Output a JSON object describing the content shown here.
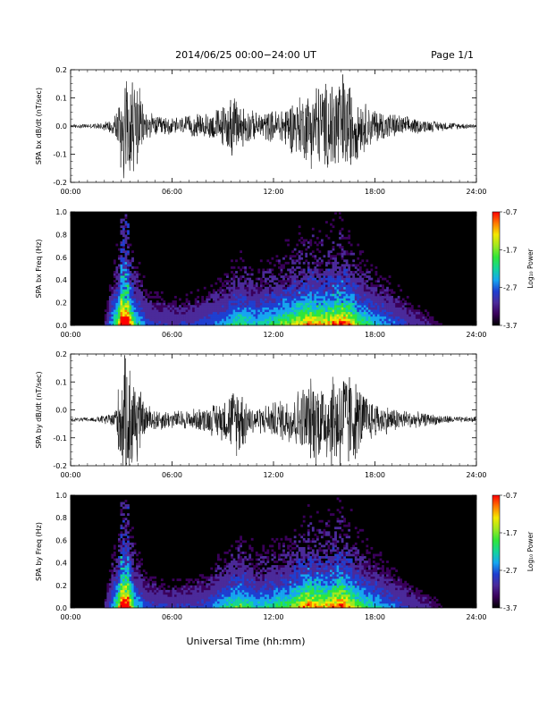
{
  "header": {
    "title": "2014/06/25  00:00−24:00 UT",
    "page": "Page 1/1"
  },
  "footer": {
    "xlabel": "Universal Time (hh:mm)"
  },
  "time_ticks": [
    "00:00",
    "06:00",
    "12:00",
    "18:00",
    "24:00"
  ],
  "colors": {
    "trace": "#000000",
    "spectrogram_background": "#000000",
    "colormap": [
      "#000000",
      "#3a005a",
      "#4b2a9a",
      "#1f3fd1",
      "#16a6f0",
      "#14d49a",
      "#30e63a",
      "#9fe820",
      "#f4e800",
      "#ff7a00",
      "#ff0000"
    ]
  },
  "chart_data": [
    {
      "type": "line",
      "name": "bx-dbdt",
      "ylabel": "SPA bx dB/dt (nT/sec)",
      "xlim": [
        0,
        24
      ],
      "ylim": [
        -0.2,
        0.2
      ],
      "yticks": [
        "-0.2",
        "-0.1",
        "0.0",
        "0.1",
        "0.2"
      ],
      "x_unit": "hours UT",
      "envelope": {
        "description": "approximate absolute amplitude of oscillations vs time",
        "x": [
          0,
          1.5,
          2.5,
          2.9,
          3.0,
          3.5,
          3.9,
          4.3,
          5.0,
          6.0,
          7.0,
          8.0,
          9.0,
          9.5,
          10.0,
          10.5,
          11.0,
          11.5,
          12.0,
          13.0,
          14.0,
          14.5,
          15.0,
          15.5,
          16.0,
          16.5,
          17.0,
          17.5,
          18.0,
          19.0,
          20.0,
          21.0,
          22.0,
          23.0,
          24.0
        ],
        "amp": [
          0.008,
          0.01,
          0.03,
          0.12,
          0.22,
          0.22,
          0.2,
          0.07,
          0.04,
          0.035,
          0.04,
          0.05,
          0.08,
          0.12,
          0.1,
          0.07,
          0.05,
          0.06,
          0.06,
          0.1,
          0.14,
          0.18,
          0.16,
          0.22,
          0.22,
          0.18,
          0.12,
          0.09,
          0.07,
          0.05,
          0.035,
          0.025,
          0.018,
          0.012,
          0.01
        ]
      },
      "baseline": 0.0
    },
    {
      "type": "heatmap",
      "name": "bx-spectrogram",
      "ylabel": "SPA bx Freq (Hz)",
      "xlim": [
        0,
        24
      ],
      "ylim": [
        0,
        1.0
      ],
      "yticks": [
        "0.0",
        "0.2",
        "0.4",
        "0.6",
        "0.8",
        "1.0"
      ],
      "colorbar": {
        "label": "Log₁₀ Power",
        "ticks": [
          "-0.7",
          "-1.7",
          "-2.7",
          "-3.7"
        ],
        "range": [
          -3.7,
          -0.7
        ]
      },
      "activity": {
        "x": [
          0,
          2.0,
          2.8,
          3.0,
          3.4,
          3.8,
          4.5,
          6.0,
          8.0,
          9.0,
          10.0,
          11.0,
          12.0,
          13.0,
          14.0,
          15.0,
          16.0,
          16.5,
          17.0,
          18.0,
          20.0,
          22.0,
          24.0
        ],
        "level": [
          0.05,
          0.1,
          0.6,
          1.0,
          0.95,
          0.5,
          0.25,
          0.2,
          0.25,
          0.35,
          0.5,
          0.4,
          0.5,
          0.6,
          0.75,
          0.7,
          0.85,
          0.75,
          0.55,
          0.4,
          0.2,
          0.1,
          0.05
        ]
      }
    },
    {
      "type": "line",
      "name": "by-dbdt",
      "ylabel": "SPA by dB/dt (nT/sec)",
      "xlim": [
        0,
        24
      ],
      "ylim": [
        -0.2,
        0.2
      ],
      "yticks": [
        "-0.2",
        "-0.1",
        "0.0",
        "0.1",
        "0.2"
      ],
      "x_unit": "hours UT",
      "envelope": {
        "description": "approximate absolute amplitude of oscillations vs time",
        "x": [
          0,
          1.5,
          2.5,
          2.9,
          3.0,
          3.5,
          3.9,
          4.3,
          5.0,
          6.0,
          7.0,
          8.0,
          9.0,
          9.5,
          10.0,
          10.5,
          11.0,
          11.5,
          12.0,
          13.0,
          14.0,
          14.5,
          15.0,
          15.5,
          16.0,
          16.5,
          17.0,
          17.5,
          18.0,
          19.0,
          20.0,
          21.0,
          22.0,
          23.0,
          24.0
        ],
        "amp": [
          0.008,
          0.01,
          0.03,
          0.15,
          0.24,
          0.24,
          0.2,
          0.07,
          0.045,
          0.035,
          0.04,
          0.05,
          0.08,
          0.12,
          0.15,
          0.07,
          0.05,
          0.06,
          0.07,
          0.1,
          0.15,
          0.18,
          0.16,
          0.2,
          0.22,
          0.2,
          0.14,
          0.1,
          0.07,
          0.05,
          0.035,
          0.025,
          0.018,
          0.012,
          0.01
        ]
      },
      "baseline": -0.035
    },
    {
      "type": "heatmap",
      "name": "by-spectrogram",
      "ylabel": "SPA by Freq (Hz)",
      "xlim": [
        0,
        24
      ],
      "ylim": [
        0,
        1.0
      ],
      "yticks": [
        "0.0",
        "0.2",
        "0.4",
        "0.6",
        "0.8",
        "1.0"
      ],
      "colorbar": {
        "label": "Log₁₀ Power",
        "ticks": [
          "-0.7",
          "-1.7",
          "-2.7",
          "-3.7"
        ],
        "range": [
          -3.7,
          -0.7
        ]
      },
      "activity": {
        "x": [
          0,
          2.0,
          2.8,
          3.0,
          3.4,
          3.8,
          4.5,
          6.0,
          8.0,
          9.0,
          10.0,
          11.0,
          12.0,
          13.0,
          14.0,
          15.0,
          16.0,
          16.5,
          17.0,
          18.0,
          20.0,
          22.0,
          24.0
        ],
        "level": [
          0.05,
          0.1,
          0.55,
          0.9,
          0.9,
          0.45,
          0.25,
          0.2,
          0.25,
          0.4,
          0.55,
          0.4,
          0.45,
          0.55,
          0.8,
          0.7,
          0.85,
          0.75,
          0.55,
          0.4,
          0.2,
          0.1,
          0.05
        ]
      }
    }
  ]
}
